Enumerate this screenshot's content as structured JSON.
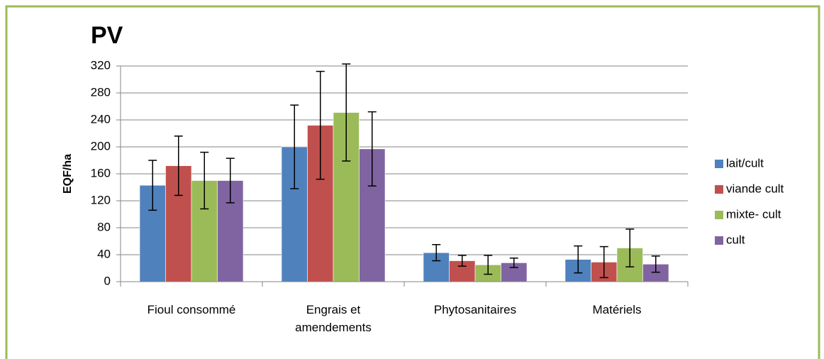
{
  "chart_data": {
    "type": "bar",
    "title": "PV",
    "y_label": "EQF/ha",
    "categories": [
      "Fioul consommé",
      "Engrais et\namendements",
      "Phytosanitaires",
      "Matériels"
    ],
    "series": [
      {
        "name": "lait/cult",
        "color": "#4f81bd",
        "values": [
          143,
          200,
          43,
          33
        ],
        "errors": [
          37,
          62,
          12,
          20
        ]
      },
      {
        "name": "viande cult",
        "color": "#c0504d",
        "values": [
          172,
          232,
          31,
          29
        ],
        "errors": [
          44,
          80,
          8,
          23
        ]
      },
      {
        "name": "mixte- cult",
        "color": "#9bbb59",
        "values": [
          150,
          251,
          25,
          50
        ],
        "errors": [
          42,
          72,
          14,
          28
        ]
      },
      {
        "name": "cult",
        "color": "#8064a2",
        "values": [
          150,
          197,
          28,
          26
        ],
        "errors": [
          33,
          55,
          7,
          12
        ]
      }
    ],
    "ylim": [
      0,
      320
    ],
    "yticks": [
      0,
      40,
      80,
      120,
      160,
      200,
      240,
      280,
      320
    ],
    "grid": true,
    "legend": "right"
  }
}
